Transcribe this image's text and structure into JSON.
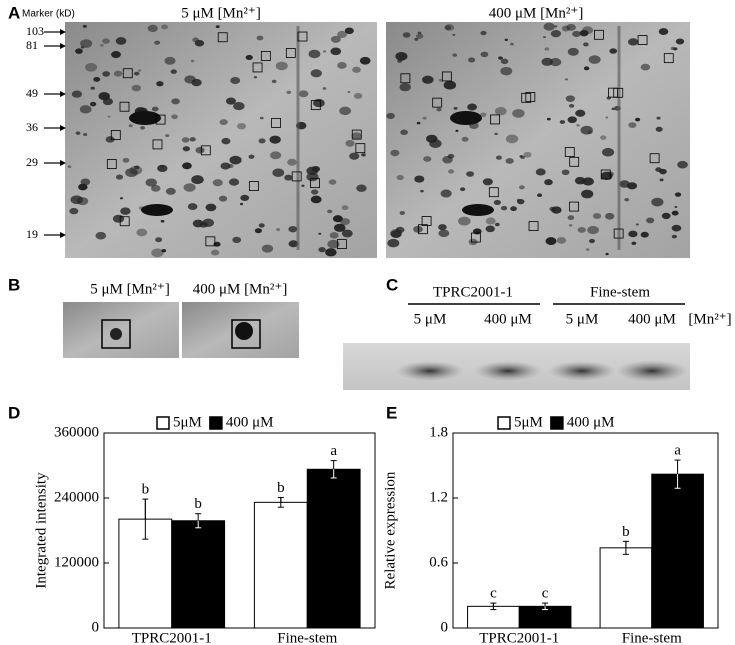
{
  "panel_labels": [
    "A",
    "B",
    "C",
    "D",
    "E"
  ],
  "panel_a": {
    "marker_title": "Marker (kD)",
    "markers": [
      "103",
      "81",
      "49",
      "36",
      "29",
      "19"
    ],
    "titles": [
      "5 μM [Mn²⁺]",
      "400 μM [Mn²⁺]"
    ]
  },
  "panel_b": {
    "titles": [
      "5 μM [Mn²⁺]",
      "400 μM [Mn²⁺]"
    ]
  },
  "panel_c": {
    "groups": [
      "TPRC2001-1",
      "Fine-stem"
    ],
    "lanes": [
      "5 μM",
      "400 μM",
      "5 μM",
      "400 μM"
    ],
    "unit": "[Mn²⁺]"
  },
  "chart_data": [
    {
      "type": "bar",
      "ylabel": "Integrated intensity",
      "categories": [
        "TPRC2001-1",
        "Fine-stem"
      ],
      "series": [
        {
          "name": "5μM",
          "color": "#ffffff",
          "values": [
            201000,
            232000
          ],
          "errors": [
            37000,
            9000
          ],
          "letters": [
            "b",
            "b"
          ]
        },
        {
          "name": "400 μM",
          "color": "#000000",
          "values": [
            198000,
            293000
          ],
          "errors": [
            13000,
            16000
          ],
          "letters": [
            "b",
            "a"
          ]
        }
      ],
      "ylim": [
        0,
        360000
      ],
      "yticks": [
        0,
        120000,
        240000,
        360000
      ]
    },
    {
      "type": "bar",
      "ylabel": "Relative expression",
      "categories": [
        "TPRC2001-1",
        "Fine-stem"
      ],
      "series": [
        {
          "name": "5μM",
          "color": "#ffffff",
          "values": [
            0.2,
            0.74
          ],
          "errors": [
            0.03,
            0.06
          ],
          "letters": [
            "c",
            "b"
          ]
        },
        {
          "name": "400 μM",
          "color": "#000000",
          "values": [
            0.2,
            1.42
          ],
          "errors": [
            0.03,
            0.13
          ],
          "letters": [
            "c",
            "a"
          ]
        }
      ],
      "ylim": [
        0,
        1.8
      ],
      "yticks": [
        0,
        0.6,
        1.2,
        1.8
      ]
    }
  ]
}
